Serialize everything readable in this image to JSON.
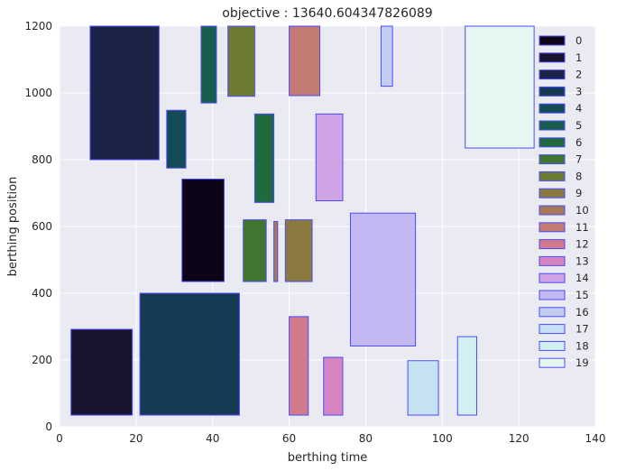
{
  "chart_data": {
    "type": "rectangles",
    "title": "objective : 13640.604347826089",
    "xlabel": "berthing time",
    "ylabel": "berthing position",
    "xlim": [
      0,
      140
    ],
    "ylim": [
      0,
      1200
    ],
    "xticks": [
      0,
      20,
      40,
      60,
      80,
      100,
      120,
      140
    ],
    "yticks": [
      0,
      200,
      400,
      600,
      800,
      1000,
      1200
    ],
    "grid": true,
    "legend_position": "right",
    "edge_color": "#4a4aff",
    "vessels": [
      {
        "name": "0",
        "x0": 32,
        "x1": 43,
        "y0": 435,
        "y1": 742,
        "color": "#0d0417"
      },
      {
        "name": "1",
        "x0": 3,
        "x1": 19,
        "y0": 35,
        "y1": 292,
        "color": "#1a1330"
      },
      {
        "name": "2",
        "x0": 8,
        "x1": 26,
        "y0": 800,
        "y1": 1200,
        "color": "#1b2446"
      },
      {
        "name": "3",
        "x0": 21,
        "x1": 47,
        "y0": 35,
        "y1": 400,
        "color": "#153a54"
      },
      {
        "name": "4",
        "x0": 28,
        "x1": 33,
        "y0": 775,
        "y1": 948,
        "color": "#144b57"
      },
      {
        "name": "5",
        "x0": 37,
        "x1": 41,
        "y0": 970,
        "y1": 1200,
        "color": "#175e4c"
      },
      {
        "name": "6",
        "x0": 51,
        "x1": 56,
        "y0": 672,
        "y1": 937,
        "color": "#206a3d"
      },
      {
        "name": "7",
        "x0": 48,
        "x1": 54,
        "y0": 435,
        "y1": 620,
        "color": "#417630"
      },
      {
        "name": "8",
        "x0": 44,
        "x1": 51,
        "y0": 990,
        "y1": 1200,
        "color": "#6c7a32"
      },
      {
        "name": "9",
        "x0": 59,
        "x1": 66,
        "y0": 435,
        "y1": 620,
        "color": "#8b7a40"
      },
      {
        "name": "10",
        "x0": 56,
        "x1": 57,
        "y0": 435,
        "y1": 615,
        "color": "#a87856"
      },
      {
        "name": "11",
        "x0": 60,
        "x1": 68,
        "y0": 992,
        "y1": 1200,
        "color": "#c27a72"
      },
      {
        "name": "12",
        "x0": 60,
        "x1": 65,
        "y0": 35,
        "y1": 330,
        "color": "#d17a8c"
      },
      {
        "name": "13",
        "x0": 69,
        "x1": 74,
        "y0": 35,
        "y1": 208,
        "color": "#d684c0"
      },
      {
        "name": "14",
        "x0": 67,
        "x1": 74,
        "y0": 677,
        "y1": 937,
        "color": "#cfa3e4"
      },
      {
        "name": "15",
        "x0": 76,
        "x1": 93,
        "y0": 242,
        "y1": 640,
        "color": "#c4b8f2"
      },
      {
        "name": "16",
        "x0": 84,
        "x1": 87,
        "y0": 1020,
        "y1": 1200,
        "color": "#c3cdf2"
      },
      {
        "name": "17",
        "x0": 91,
        "x1": 99,
        "y0": 35,
        "y1": 198,
        "color": "#c6e2f2"
      },
      {
        "name": "18",
        "x0": 104,
        "x1": 109,
        "y0": 35,
        "y1": 270,
        "color": "#d2f0f2"
      },
      {
        "name": "19",
        "x0": 106,
        "x1": 124,
        "y0": 835,
        "y1": 1200,
        "color": "#e6f7f2"
      }
    ]
  }
}
